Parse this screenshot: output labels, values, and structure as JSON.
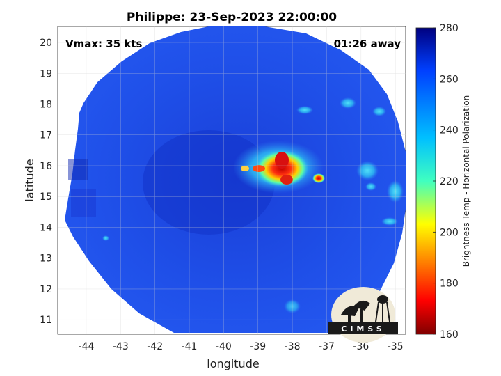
{
  "title": "Philippe: 23-Sep-2023 22:00:00",
  "annotations": {
    "vmax": "Vmax: 35 kts",
    "time_away": "01:26 away"
  },
  "axes": {
    "xlabel": "longitude",
    "ylabel": "latitude",
    "x_ticks": [
      "-44",
      "-43",
      "-42",
      "-41",
      "-40",
      "-39",
      "-38",
      "-37",
      "-36",
      "-35"
    ],
    "y_ticks": [
      "11",
      "12",
      "13",
      "14",
      "15",
      "16",
      "17",
      "18",
      "19",
      "20"
    ],
    "grid": true
  },
  "colorbar": {
    "label": "Brightness Temp - Horizontal Polarization",
    "ticks": [
      "160",
      "180",
      "200",
      "220",
      "240",
      "260",
      "280"
    ],
    "colormap": "jet",
    "range": [
      160,
      280
    ]
  },
  "logo": {
    "text": "CIMSS"
  },
  "colors": {
    "background_blue": "#1e4be6",
    "swath_dark": "#1030c0",
    "cold_cloud_red": "#d81010",
    "warm_cyan": "#30c8f0"
  }
}
